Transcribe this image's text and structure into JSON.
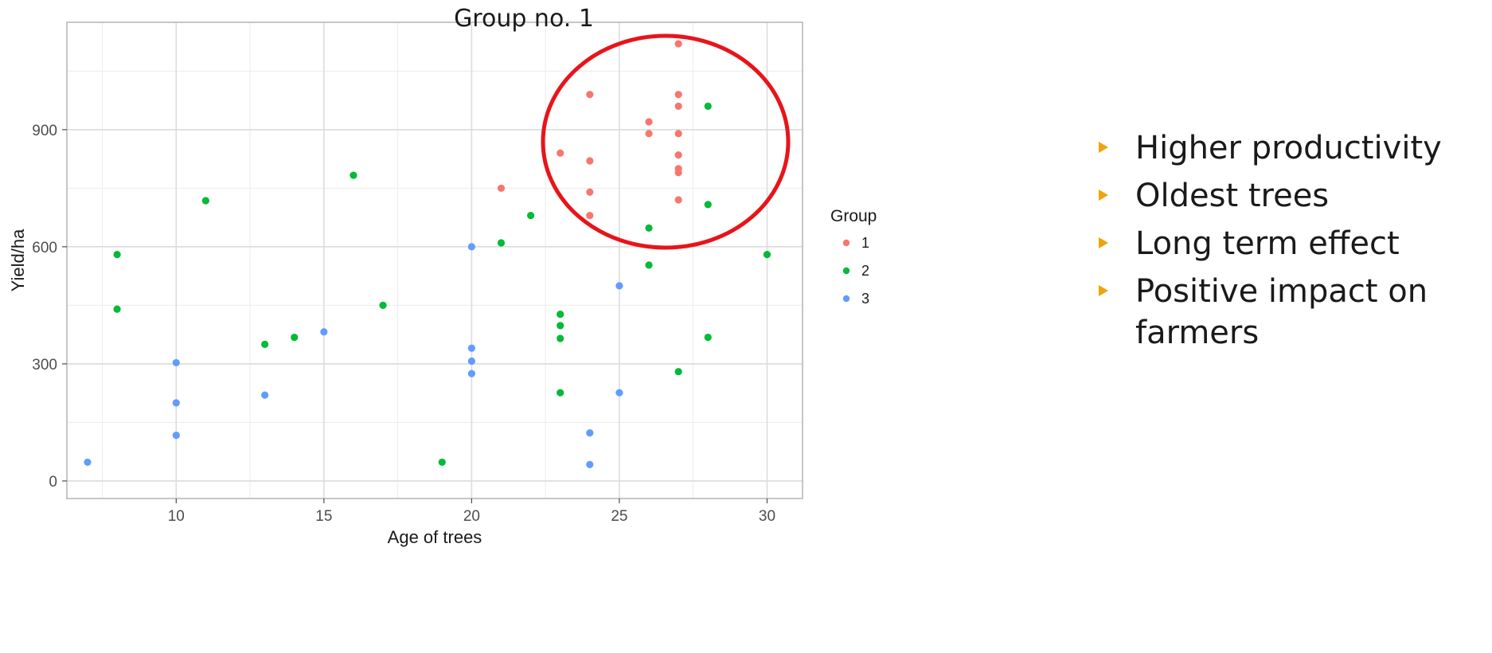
{
  "chart_data": {
    "type": "scatter",
    "title": "Group no. 1",
    "xlabel": "Age of trees",
    "ylabel": "Yield/ha",
    "xlim": [
      6.3,
      31.2
    ],
    "ylim": [
      -45,
      1175
    ],
    "x_ticks": [
      10,
      15,
      20,
      25,
      30
    ],
    "y_ticks": [
      0,
      300,
      600,
      900
    ],
    "grid": true,
    "legend": {
      "title": "Group",
      "placement": "right",
      "entries": [
        "1",
        "2",
        "3"
      ]
    },
    "colors": {
      "1": "#f8766d",
      "2": "#00ba38",
      "3": "#619cff"
    },
    "series": [
      {
        "name": "1",
        "points": [
          [
            21,
            750
          ],
          [
            23,
            840
          ],
          [
            24,
            990
          ],
          [
            24,
            820
          ],
          [
            24,
            740
          ],
          [
            24,
            680
          ],
          [
            26,
            920
          ],
          [
            26,
            890
          ],
          [
            27,
            1120
          ],
          [
            27,
            990
          ],
          [
            27,
            960
          ],
          [
            27,
            890
          ],
          [
            27,
            835
          ],
          [
            27,
            800
          ],
          [
            27,
            790
          ],
          [
            27,
            720
          ]
        ]
      },
      {
        "name": "2",
        "points": [
          [
            8,
            580
          ],
          [
            8,
            440
          ],
          [
            11,
            718
          ],
          [
            13,
            350
          ],
          [
            14,
            368
          ],
          [
            16,
            783
          ],
          [
            17,
            450
          ],
          [
            19,
            48
          ],
          [
            21,
            610
          ],
          [
            22,
            680
          ],
          [
            23,
            427
          ],
          [
            23,
            398
          ],
          [
            23,
            365
          ],
          [
            23,
            226
          ],
          [
            26,
            648
          ],
          [
            26,
            553
          ],
          [
            27,
            280
          ],
          [
            28,
            960
          ],
          [
            28,
            708
          ],
          [
            28,
            368
          ],
          [
            30,
            580
          ]
        ]
      },
      {
        "name": "3",
        "points": [
          [
            7,
            48
          ],
          [
            10,
            303
          ],
          [
            10,
            200
          ],
          [
            10,
            117
          ],
          [
            13,
            220
          ],
          [
            15,
            382
          ],
          [
            20,
            600
          ],
          [
            20,
            340
          ],
          [
            20,
            307
          ],
          [
            20,
            275
          ],
          [
            24,
            123
          ],
          [
            24,
            42
          ],
          [
            25,
            500
          ],
          [
            25,
            226
          ]
        ]
      }
    ]
  },
  "bullets": [
    "Higher productivity",
    "Oldest trees",
    "Long term effect",
    "Positive impact on farmers"
  ],
  "highlight_color": "#e8141a",
  "bullet_color": "#f0a30a"
}
